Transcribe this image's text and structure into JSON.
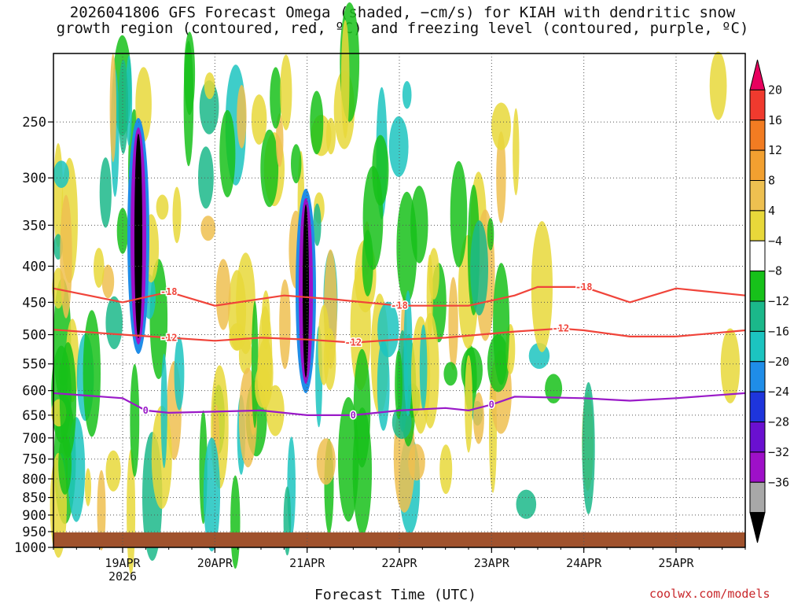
{
  "title": "2026041806 GFS Forecast Omega (shaded, −cm/s) for KIAH with dendritic snow\ngrowth region (contoured, red, ºC) and freezing level (contoured, purple, ºC)",
  "credit": "coolwx.com/models",
  "chart_data": {
    "type": "heatmap",
    "title": "2026041806 GFS Forecast Omega (shaded, −cm/s) for KIAH with dendritic snow growth region (contoured, red, ºC) and freezing level (contoured, purple, ºC)",
    "xlabel": "Forecast Time (UTC)",
    "ylabel": "",
    "x_tick_labels": [
      "19APR",
      "20APR",
      "21APR",
      "22APR",
      "23APR",
      "24APR",
      "25APR"
    ],
    "x_subtick_label": "2026",
    "xlim": [
      "2026-04-18T06:00Z",
      "2026-04-25T18:00Z"
    ],
    "y_tick_labels": [
      "250",
      "300",
      "350",
      "400",
      "450",
      "500",
      "550",
      "600",
      "650",
      "700",
      "750",
      "800",
      "850",
      "900",
      "950",
      "1000"
    ],
    "ylim": [
      1000,
      200
    ],
    "y_units": "hPa",
    "gridlines": true,
    "colorbar": {
      "labels": [
        "20",
        "16",
        "12",
        "8",
        "4",
        "−4",
        "−8",
        "−12",
        "−16",
        "−20",
        "−24",
        "−28",
        "−32",
        "−36"
      ],
      "colors": [
        "#e8005e",
        "#f03a2e",
        "#f27c22",
        "#f2a030",
        "#eec050",
        "#e8d83a",
        "#ffffff",
        "#17c11a",
        "#1bb88a",
        "#1cc4c0",
        "#1f8de8",
        "#1e35dc",
        "#6a10d0",
        "#9e10c8",
        "#a8a8a8",
        "#000000"
      ]
    },
    "contours": [
      {
        "label": "−18",
        "color": "#f0443a",
        "points": [
          [
            "2026-04-18T06:00Z",
            430
          ],
          [
            "2026-04-19T00:00Z",
            450
          ],
          [
            "2026-04-19T12:00Z",
            435
          ],
          [
            "2026-04-20T00:00Z",
            455
          ],
          [
            "2026-04-20T18:00Z",
            440
          ],
          [
            "2026-04-21T06:00Z",
            445
          ],
          [
            "2026-04-22T00:00Z",
            455
          ],
          [
            "2026-04-22T18:00Z",
            455
          ],
          [
            "2026-04-23T06:00Z",
            440
          ],
          [
            "2026-04-23T12:00Z",
            428
          ],
          [
            "2026-04-24T00:00Z",
            428
          ],
          [
            "2026-04-24T12:00Z",
            450
          ],
          [
            "2026-04-25T00:00Z",
            430
          ],
          [
            "2026-04-25T18:00Z",
            440
          ]
        ]
      },
      {
        "label": "−12",
        "color": "#f0443a",
        "points": [
          [
            "2026-04-18T06:00Z",
            492
          ],
          [
            "2026-04-19T00:00Z",
            500
          ],
          [
            "2026-04-19T12:00Z",
            505
          ],
          [
            "2026-04-20T00:00Z",
            510
          ],
          [
            "2026-04-20T12:00Z",
            505
          ],
          [
            "2026-04-21T00:00Z",
            508
          ],
          [
            "2026-04-21T12:00Z",
            513
          ],
          [
            "2026-04-22T00:00Z",
            508
          ],
          [
            "2026-04-22T12:00Z",
            505
          ],
          [
            "2026-04-23T06:00Z",
            495
          ],
          [
            "2026-04-23T18:00Z",
            490
          ],
          [
            "2026-04-24T00:00Z",
            493
          ],
          [
            "2026-04-24T12:00Z",
            503
          ],
          [
            "2026-04-25T00:00Z",
            503
          ],
          [
            "2026-04-25T18:00Z",
            493
          ]
        ]
      },
      {
        "label": "0",
        "color": "#9a1ac8",
        "points": [
          [
            "2026-04-18T06:00Z",
            605
          ],
          [
            "2026-04-19T00:00Z",
            615
          ],
          [
            "2026-04-19T06:00Z",
            640
          ],
          [
            "2026-04-19T12:00Z",
            645
          ],
          [
            "2026-04-20T12:00Z",
            640
          ],
          [
            "2026-04-21T00:00Z",
            650
          ],
          [
            "2026-04-21T12:00Z",
            650
          ],
          [
            "2026-04-22T00:00Z",
            640
          ],
          [
            "2026-04-22T12:00Z",
            635
          ],
          [
            "2026-04-22T18:00Z",
            640
          ],
          [
            "2026-04-23T00:00Z",
            628
          ],
          [
            "2026-04-23T06:00Z",
            612
          ],
          [
            "2026-04-24T00:00Z",
            615
          ],
          [
            "2026-04-24T12:00Z",
            620
          ],
          [
            "2026-04-25T00:00Z",
            615
          ],
          [
            "2026-04-25T18:00Z",
            605
          ]
        ]
      }
    ],
    "annotations": [
      "-18",
      "-12",
      "0"
    ]
  }
}
